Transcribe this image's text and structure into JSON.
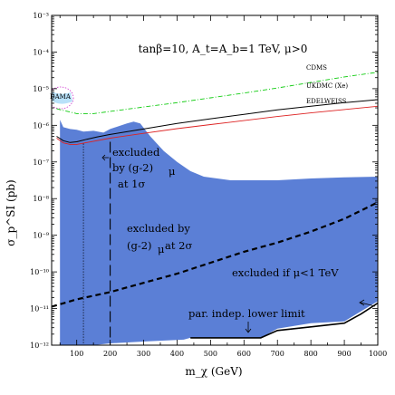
{
  "chart_data": {
    "type": "area",
    "title": "tanβ=10,  A_t=A_b=1 TeV,  μ>0",
    "xlabel": "m_χ (GeV)",
    "ylabel": "σ_p^SI (pb)",
    "x_ticks": [
      "100",
      "200",
      "300",
      "400",
      "500",
      "600",
      "700",
      "800",
      "900",
      "1000"
    ],
    "y_ticks": [
      "10⁻¹²",
      "10⁻¹¹",
      "10⁻¹⁰",
      "10⁻⁹",
      "10⁻⁸",
      "10⁻⁷",
      "10⁻⁶",
      "10⁻⁵",
      "10⁻⁴",
      "10⁻³"
    ],
    "xlim": [
      25,
      1000
    ],
    "ylim_log10": [
      -12,
      -3
    ],
    "y_scale": "log",
    "colors": {
      "region": "#5b7fd6",
      "cdms": "#11cc11",
      "ukdmc": "#000000",
      "edelweiss": "#dd2222",
      "dama": "#cc33cc",
      "dama_fill": "#33aaee"
    },
    "region": {
      "upper": [
        [
          50,
          -5.85
        ],
        [
          60,
          -6.05
        ],
        [
          80,
          -6.1
        ],
        [
          100,
          -6.12
        ],
        [
          120,
          -6.17
        ],
        [
          150,
          -6.15
        ],
        [
          180,
          -6.2
        ],
        [
          200,
          -6.1
        ],
        [
          250,
          -5.95
        ],
        [
          270,
          -5.9
        ],
        [
          290,
          -5.95
        ],
        [
          320,
          -6.3
        ],
        [
          360,
          -6.7
        ],
        [
          400,
          -7
        ],
        [
          440,
          -7.25
        ],
        [
          480,
          -7.4
        ],
        [
          520,
          -7.45
        ],
        [
          560,
          -7.5
        ],
        [
          600,
          -7.5
        ],
        [
          700,
          -7.5
        ],
        [
          800,
          -7.45
        ],
        [
          900,
          -7.42
        ],
        [
          1000,
          -7.4
        ]
      ],
      "lower": [
        [
          1000,
          -10.8
        ],
        [
          900,
          -11.35
        ],
        [
          800,
          -11.4
        ],
        [
          700,
          -11.55
        ],
        [
          650,
          -11.8
        ],
        [
          600,
          -11.8
        ],
        [
          500,
          -11.8
        ],
        [
          440,
          -11.8
        ],
        [
          420,
          -11.85
        ],
        [
          300,
          -11.9
        ],
        [
          200,
          -11.95
        ],
        [
          150,
          -12
        ],
        [
          100,
          -12
        ],
        [
          50,
          -12
        ]
      ]
    },
    "series": [
      {
        "name": "CDMS",
        "style": "dash-dot",
        "points": [
          [
            40,
            -5.55
          ],
          [
            100,
            -5.68
          ],
          [
            150,
            -5.68
          ],
          [
            200,
            -5.62
          ],
          [
            300,
            -5.5
          ],
          [
            400,
            -5.38
          ],
          [
            500,
            -5.25
          ],
          [
            600,
            -5.12
          ],
          [
            700,
            -4.98
          ],
          [
            800,
            -4.83
          ],
          [
            900,
            -4.68
          ],
          [
            1000,
            -4.55
          ]
        ]
      },
      {
        "name": "UKDMC (Xe)",
        "style": "solid",
        "points": [
          [
            40,
            -6.3
          ],
          [
            60,
            -6.42
          ],
          [
            80,
            -6.47
          ],
          [
            100,
            -6.45
          ],
          [
            130,
            -6.38
          ],
          [
            160,
            -6.32
          ],
          [
            200,
            -6.25
          ],
          [
            300,
            -6.1
          ],
          [
            400,
            -5.95
          ],
          [
            500,
            -5.82
          ],
          [
            600,
            -5.7
          ],
          [
            700,
            -5.58
          ],
          [
            800,
            -5.48
          ],
          [
            900,
            -5.38
          ],
          [
            1000,
            -5.3
          ]
        ]
      },
      {
        "name": "EDELWEISS",
        "style": "solid",
        "points": [
          [
            40,
            -6.35
          ],
          [
            60,
            -6.48
          ],
          [
            80,
            -6.52
          ],
          [
            100,
            -6.52
          ],
          [
            130,
            -6.47
          ],
          [
            160,
            -6.42
          ],
          [
            200,
            -6.35
          ],
          [
            300,
            -6.22
          ],
          [
            400,
            -6.09
          ],
          [
            500,
            -5.98
          ],
          [
            600,
            -5.87
          ],
          [
            700,
            -5.76
          ],
          [
            800,
            -5.66
          ],
          [
            900,
            -5.57
          ],
          [
            1000,
            -5.48
          ]
        ]
      },
      {
        "name": "excluded by (g-2)μ at 2σ",
        "style": "dashed",
        "points": [
          [
            25,
            -10.95
          ],
          [
            100,
            -10.75
          ],
          [
            200,
            -10.55
          ],
          [
            300,
            -10.3
          ],
          [
            400,
            -10.05
          ],
          [
            500,
            -9.75
          ],
          [
            600,
            -9.45
          ],
          [
            700,
            -9.2
          ],
          [
            800,
            -8.9
          ],
          [
            900,
            -8.55
          ],
          [
            1000,
            -8.1
          ]
        ]
      },
      {
        "name": "par. indep. lower limit",
        "style": "solid",
        "points": [
          [
            440,
            -11.8
          ],
          [
            650,
            -11.8
          ],
          [
            700,
            -11.6
          ],
          [
            800,
            -11.5
          ],
          [
            900,
            -11.4
          ],
          [
            950,
            -11.15
          ],
          [
            1000,
            -10.85
          ]
        ]
      },
      {
        "name": "(g-2)μ 1σ boundary",
        "style": "long-dash",
        "points": [
          [
            200,
            -6.45
          ],
          [
            200,
            -12
          ]
        ]
      },
      {
        "name": "dotted boundary",
        "style": "dotted",
        "points": [
          [
            120,
            -6.5
          ],
          [
            120,
            -12
          ]
        ]
      }
    ],
    "labels": {
      "cdms": "CDMS",
      "ukdmc": "UKDMC (Xe)",
      "edelweiss": "EDELWEISS",
      "dama": "DAMA",
      "excl_1s_a": "excluded",
      "excl_1s_b": "by (g-2)",
      "excl_1s_c": "at 1σ",
      "excl_2s_a": "excluded by",
      "excl_2s_b": "(g-2)",
      "excl_2s_c": "at 2σ",
      "mu": "μ",
      "excl_mu": "excluded if μ<1 TeV",
      "lower_limit": "par. indep. lower limit"
    }
  }
}
